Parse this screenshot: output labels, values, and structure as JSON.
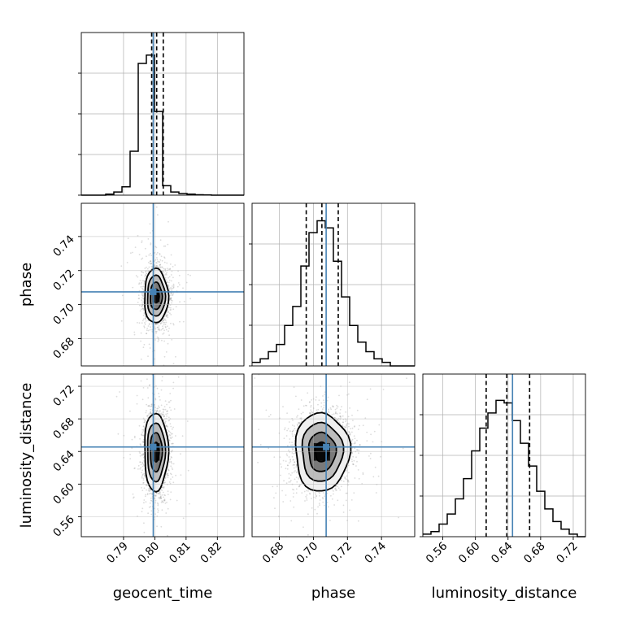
{
  "chart_data": {
    "type": "corner",
    "parameters": [
      "geocent_time",
      "phase",
      "luminosity_distance"
    ],
    "axis_labels": {
      "geocent_time": "geocent_time",
      "phase": "phase",
      "luminosity_distance": "luminosity_distance"
    },
    "ranges": {
      "geocent_time": [
        0.7765,
        0.8285
      ],
      "phase": [
        0.664,
        0.7595
      ],
      "luminosity_distance": [
        0.5355,
        0.735
      ]
    },
    "ticks": {
      "geocent_time": [
        "0.79",
        "0.80",
        "0.81",
        "0.82"
      ],
      "phase": [
        "0.68",
        "0.70",
        "0.72",
        "0.74"
      ],
      "luminosity_distance": [
        "0.56",
        "0.60",
        "0.64",
        "0.68",
        "0.72"
      ]
    },
    "truths": {
      "geocent_time": 0.7995,
      "phase": 0.7075,
      "luminosity_distance": 0.6455
    },
    "quantiles": {
      "geocent_time": [
        0.799,
        0.8006,
        0.8027
      ],
      "phase": [
        0.6958,
        0.705,
        0.7146
      ],
      "luminosity_distance": [
        0.6132,
        0.6385,
        0.6665
      ]
    },
    "histograms": {
      "geocent_time": {
        "bin_edges": [
          0.7765,
          0.7791,
          0.7817,
          0.7843,
          0.7869,
          0.7895,
          0.7921,
          0.7947,
          0.7973,
          0.7999,
          0.8025,
          0.8051,
          0.8077,
          0.8103,
          0.8129,
          0.8155,
          0.8181,
          0.8207,
          0.8233,
          0.8259,
          0.8285
        ],
        "counts": [
          0,
          0,
          0,
          0.5,
          1.5,
          4,
          21,
          63,
          67,
          40,
          4.5,
          1.5,
          0.8,
          0.5,
          0.2,
          0.1,
          0,
          0,
          0,
          0
        ]
      },
      "phase": {
        "bin_edges": [
          0.664,
          0.668775,
          0.67355,
          0.678325,
          0.6831,
          0.687875,
          0.69265,
          0.697425,
          0.7022,
          0.706975,
          0.71175,
          0.716525,
          0.7213,
          0.726075,
          0.73085,
          0.735625,
          0.7404,
          0.745175,
          0.74995,
          0.754725,
          0.7595
        ],
        "counts": [
          1.5,
          3,
          6,
          9,
          17,
          25,
          42,
          56,
          61,
          58,
          44,
          29,
          17,
          10,
          6,
          3,
          1.5,
          0,
          0,
          0
        ]
      },
      "luminosity_distance": {
        "bin_edges": [
          0.5355,
          0.545475,
          0.55545,
          0.565425,
          0.5754,
          0.585375,
          0.59535,
          0.605325,
          0.6153,
          0.625275,
          0.63525,
          0.645225,
          0.6552,
          0.665175,
          0.67515,
          0.685125,
          0.6951,
          0.705075,
          0.71505,
          0.725025,
          0.735
        ],
        "counts": [
          1,
          2,
          5,
          9,
          15,
          23,
          34,
          43,
          49,
          54,
          53,
          46,
          37,
          28,
          18,
          11,
          6,
          3,
          1,
          0
        ]
      }
    },
    "peak_reference": {
      "geocent_time": 70,
      "phase": 61.5,
      "luminosity_distance": 58
    },
    "scatter": {
      "phase_vs_geocent_time": {
        "center": [
          0.8004,
          0.705
        ],
        "sigma": [
          0.0019,
          0.008
        ]
      },
      "luminosity_distance_vs_geocent_time": {
        "center": [
          0.8004,
          0.6395
        ],
        "sigma": [
          0.0019,
          0.024
        ]
      },
      "luminosity_distance_vs_phase": {
        "center": [
          0.705,
          0.6395
        ],
        "sigma": [
          0.008,
          0.024
        ]
      }
    },
    "contour_sigma_levels": [
      0.5,
      1.0,
      1.5,
      2.0
    ],
    "grid": true,
    "colors": {
      "truth": "#4682b4",
      "lines": "#000000",
      "samples": "#9a9a9a"
    }
  }
}
